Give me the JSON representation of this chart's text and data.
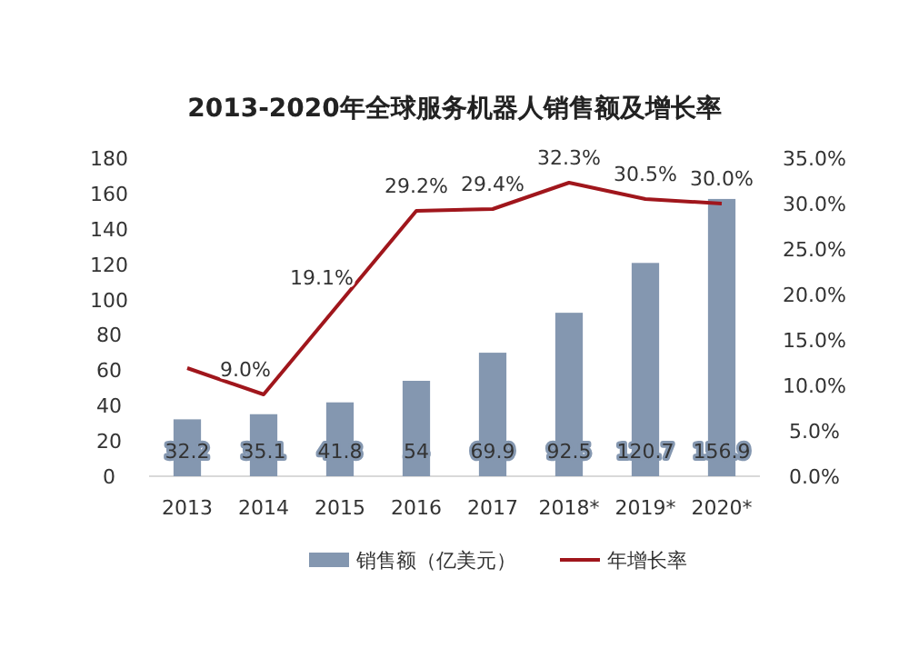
{
  "chart_data": {
    "type": "bar",
    "title": "2013-2020年全球服务机器人销售额及增长率",
    "categories": [
      "2013",
      "2014",
      "2015",
      "2016",
      "2017",
      "2018*",
      "2019*",
      "2020*"
    ],
    "series": [
      {
        "name": "销售额（亿美元）",
        "color": "#8497b0",
        "values": [
          32.2,
          35.1,
          41.8,
          54,
          69.9,
          92.5,
          120.7,
          156.9
        ],
        "value_labels": [
          "32.2",
          "35.1",
          "41.8",
          "54",
          "69.9",
          "92.5",
          "120.7",
          "156.9"
        ]
      },
      {
        "name": "年增长率",
        "type": "line",
        "axis": "y2",
        "color": "#a0161c",
        "marker": "none",
        "values": [
          11.9,
          9.0,
          19.1,
          29.2,
          29.4,
          32.3,
          30.5,
          30.0
        ],
        "value_labels": [
          null,
          "9.0%",
          "19.1%",
          "29.2%",
          "29.4%",
          "32.3%",
          "30.5%",
          "30.0%"
        ]
      }
    ],
    "ylim": [
      0,
      180
    ],
    "yticks": [
      0,
      20,
      40,
      60,
      80,
      100,
      120,
      140,
      160,
      180
    ],
    "y2lim": [
      0,
      35
    ],
    "y2ticks": [
      {
        "value": 0,
        "label": "0.0%"
      },
      {
        "value": 5,
        "label": "5.0%"
      },
      {
        "value": 10,
        "label": "10.0%"
      },
      {
        "value": 15,
        "label": "15.0%"
      },
      {
        "value": 20,
        "label": "20.0%"
      },
      {
        "value": 25,
        "label": "25.0%"
      },
      {
        "value": 30,
        "label": "30.0%"
      },
      {
        "value": 35,
        "label": "35.0%"
      }
    ],
    "legend": "bottom",
    "grid": false
  }
}
